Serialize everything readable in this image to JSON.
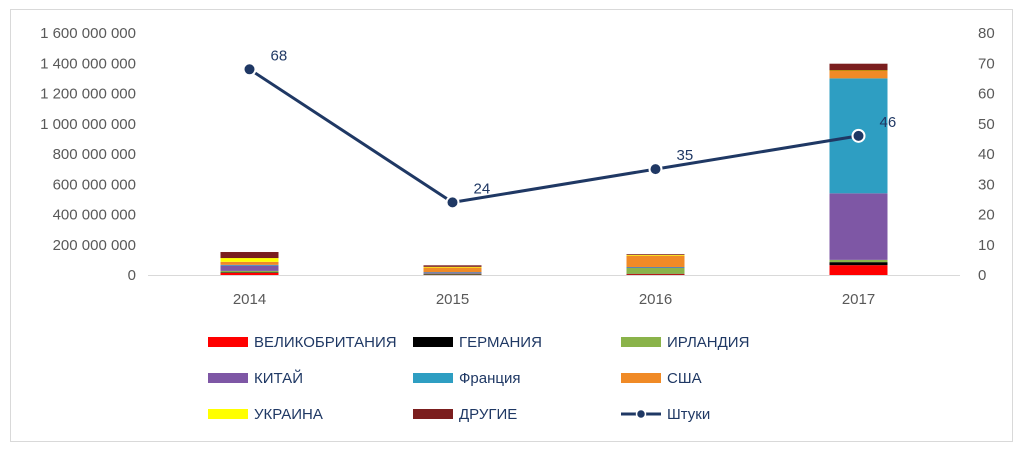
{
  "chart_data": {
    "type": "bar",
    "stacked": true,
    "categories": [
      "2014",
      "2015",
      "2016",
      "2017"
    ],
    "y_left": {
      "ticks": [
        0,
        200000000,
        400000000,
        600000000,
        800000000,
        1000000000,
        1200000000,
        1400000000,
        1600000000
      ],
      "tick_labels": [
        "0",
        "200 000 000",
        "400 000 000",
        "600 000 000",
        "800 000 000",
        "1 000 000 000",
        "1 200 000 000",
        "1 400 000 000",
        "1 600 000 000"
      ],
      "ylim": [
        0,
        1600000000
      ]
    },
    "y_right": {
      "ticks": [
        0,
        10,
        20,
        30,
        40,
        50,
        60,
        70,
        80
      ],
      "tick_labels": [
        "0",
        "10",
        "20",
        "30",
        "40",
        "50",
        "60",
        "70",
        "80"
      ],
      "ylim": [
        0,
        80
      ]
    },
    "series": [
      {
        "name": "ВЕЛИКОБРИТАНИЯ",
        "color": "#ff0000",
        "values": [
          15000000,
          3000000,
          5000000,
          65000000
        ]
      },
      {
        "name": "ГЕРМАНИЯ",
        "color": "#000000",
        "values": [
          2000000,
          1000000,
          3000000,
          20000000
        ]
      },
      {
        "name": "ИРЛАНДИЯ",
        "color": "#8ab34a",
        "values": [
          10000000,
          5000000,
          40000000,
          15000000
        ]
      },
      {
        "name": "КИТАЙ",
        "color": "#7e57a5",
        "values": [
          35000000,
          8000000,
          2000000,
          440000000
        ]
      },
      {
        "name": "Франция",
        "color": "#2e9ec2",
        "values": [
          5000000,
          2000000,
          3000000,
          760000000
        ]
      },
      {
        "name": "США",
        "color": "#f08a26",
        "values": [
          20000000,
          30000000,
          75000000,
          50000000
        ]
      },
      {
        "name": "УКРАИНА",
        "color": "#ffff00",
        "values": [
          25000000,
          5000000,
          5000000,
          2000000
        ]
      },
      {
        "name": "ДРУГИЕ",
        "color": "#7b1e1e",
        "values": [
          40000000,
          10000000,
          5000000,
          45000000
        ]
      }
    ],
    "line": {
      "name": "Штуки",
      "color": "#1f3864",
      "values": [
        68,
        24,
        35,
        46
      ],
      "labels": [
        "68",
        "24",
        "35",
        "46"
      ],
      "axis": "right"
    },
    "grid": false,
    "legend": "bottom"
  }
}
